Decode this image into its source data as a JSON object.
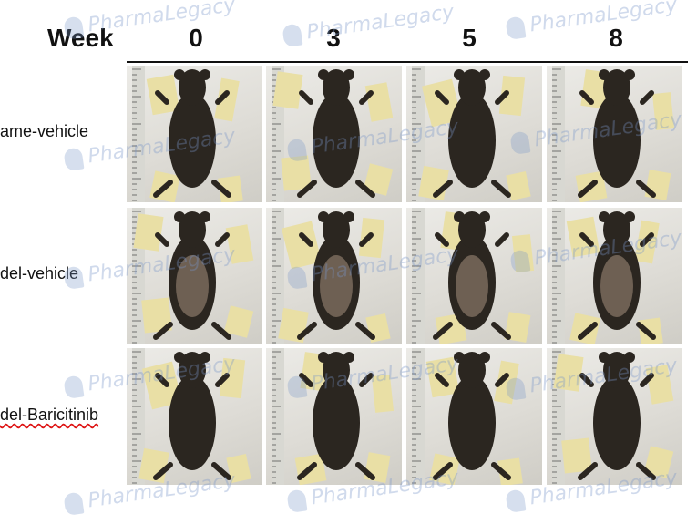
{
  "header": {
    "week_label": "Week",
    "weeks": [
      "0",
      "3",
      "5",
      "8"
    ]
  },
  "rows": [
    {
      "label": "ame-vehicle"
    },
    {
      "label": "del-vehicle"
    },
    {
      "label": "del-Baricitinib"
    }
  ],
  "watermark": {
    "text": "PharmaLegacy"
  },
  "colors": {
    "fur_dark": "#2b2620",
    "fur_shaved": "#7a6b5d",
    "tape": "#e9dfa5",
    "ruler": "#d8d8d2"
  }
}
